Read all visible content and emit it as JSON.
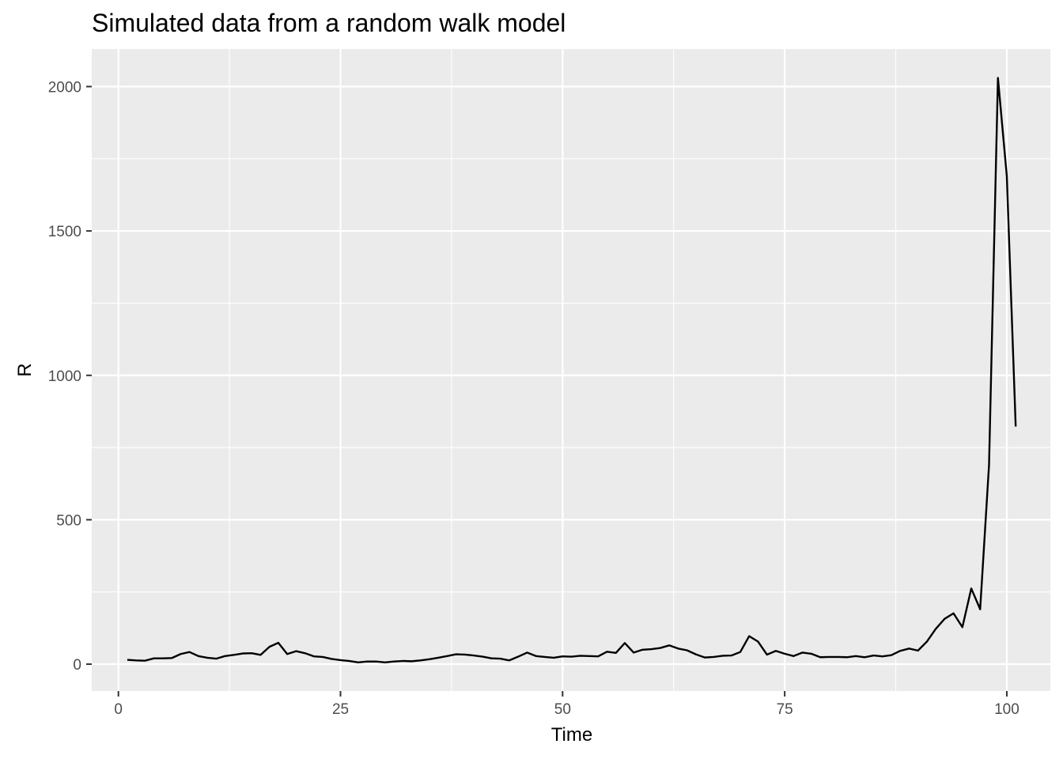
{
  "chart_data": {
    "type": "line",
    "title": "Simulated data from a random walk model",
    "xlabel": "Time",
    "ylabel": "R",
    "xlim": [
      -3.0,
      104.9
    ],
    "ylim": [
      -93,
      2130
    ],
    "x_ticks": [
      0,
      25,
      50,
      75,
      100
    ],
    "x_tick_labels": [
      "0",
      "25",
      "50",
      "75",
      "100"
    ],
    "y_ticks": [
      0,
      500,
      1000,
      1500,
      2000
    ],
    "y_tick_labels": [
      "0",
      "500",
      "1000",
      "1500",
      "2000"
    ],
    "grid": true,
    "line_color": "#000000",
    "panel_color": "#ebebeb",
    "series": [
      {
        "x": [
          1,
          2,
          3,
          4,
          5,
          6,
          7,
          8,
          9,
          10,
          11,
          12,
          13,
          14,
          15,
          16,
          17,
          18,
          19,
          20,
          21,
          22,
          23,
          24,
          25,
          26,
          27,
          28,
          29,
          30,
          31,
          32,
          33,
          34,
          35,
          36,
          37,
          38,
          39,
          40,
          41,
          42,
          43,
          44,
          45,
          46,
          47,
          48,
          49,
          50,
          51,
          52,
          53,
          54,
          55,
          56,
          57,
          58,
          59,
          60,
          61,
          62,
          63,
          64,
          65,
          66,
          67,
          68,
          69,
          70,
          71,
          72,
          73,
          74,
          75,
          76,
          77,
          78,
          79,
          80,
          81,
          82,
          83,
          84,
          85,
          86,
          87,
          88,
          89,
          90,
          91,
          92,
          93,
          94,
          95,
          96,
          97,
          98,
          99,
          100,
          101
        ],
        "y": [
          15,
          13,
          12,
          20,
          20,
          21,
          35,
          42,
          28,
          22,
          19,
          28,
          32,
          37,
          38,
          32,
          60,
          74,
          35,
          45,
          38,
          27,
          25,
          18,
          14,
          11,
          6,
          9,
          9,
          6,
          9,
          11,
          10,
          13,
          17,
          22,
          28,
          34,
          33,
          30,
          26,
          20,
          19,
          13,
          26,
          40,
          28,
          25,
          22,
          27,
          26,
          29,
          28,
          27,
          43,
          39,
          73,
          40,
          50,
          52,
          56,
          65,
          54,
          48,
          34,
          23,
          25,
          29,
          30,
          42,
          97,
          78,
          33,
          46,
          36,
          28,
          40,
          36,
          24,
          25,
          25,
          24,
          28,
          24,
          30,
          27,
          31,
          46,
          54,
          47,
          78,
          122,
          157,
          176,
          128,
          262,
          190,
          690,
          2030,
          1690,
          823
        ]
      }
    ]
  }
}
